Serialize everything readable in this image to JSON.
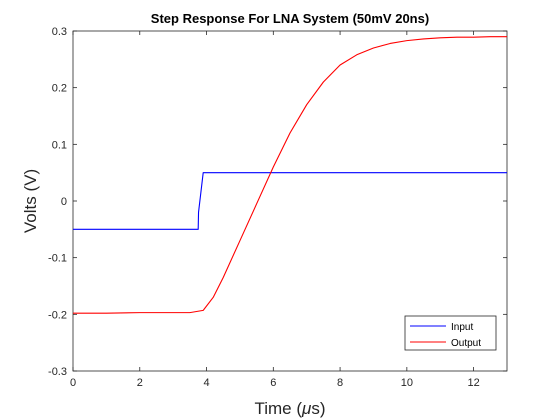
{
  "chart_data": {
    "type": "line",
    "title": "Step Response For LNA System (50mV 20ns)",
    "xlabel_prefix": "Time (",
    "xlabel_mu": "μ",
    "xlabel_suffix": "s)",
    "ylabel": "Volts (V)",
    "xlim": [
      0,
      13
    ],
    "ylim": [
      -0.3,
      0.3
    ],
    "xticks": [
      0,
      2,
      4,
      6,
      8,
      10,
      12
    ],
    "yticks": [
      -0.3,
      -0.2,
      -0.1,
      0,
      0.1,
      0.2,
      0.3
    ],
    "xtick_labels": [
      "0",
      "2",
      "4",
      "6",
      "8",
      "10",
      "12"
    ],
    "ytick_labels": [
      "-0.3",
      "-0.2",
      "-0.1",
      "0",
      "0.1",
      "0.2",
      "0.3"
    ],
    "grid": false,
    "legend_position": "bottom-right",
    "series": [
      {
        "name": "Input",
        "color": "#0000ff",
        "x": [
          0,
          1,
          2,
          3,
          3.75,
          3.76,
          3.9,
          4,
          5,
          6,
          7,
          8,
          9,
          10,
          11,
          12,
          13
        ],
        "y": [
          -0.05,
          -0.05,
          -0.05,
          -0.05,
          -0.05,
          -0.02,
          0.05,
          0.05,
          0.05,
          0.05,
          0.05,
          0.05,
          0.05,
          0.05,
          0.05,
          0.05,
          0.05
        ]
      },
      {
        "name": "Output",
        "color": "#ff0000",
        "x": [
          0,
          1,
          2,
          3,
          3.5,
          3.9,
          4.2,
          4.5,
          5,
          5.5,
          6,
          6.5,
          7,
          7.5,
          8,
          8.5,
          9,
          9.5,
          10,
          10.5,
          11,
          11.5,
          12,
          12.5,
          13
        ],
        "y": [
          -0.198,
          -0.198,
          -0.197,
          -0.197,
          -0.197,
          -0.193,
          -0.17,
          -0.135,
          -0.07,
          -0.005,
          0.06,
          0.12,
          0.17,
          0.21,
          0.24,
          0.258,
          0.27,
          0.278,
          0.283,
          0.286,
          0.288,
          0.289,
          0.289,
          0.29,
          0.29
        ]
      }
    ]
  }
}
